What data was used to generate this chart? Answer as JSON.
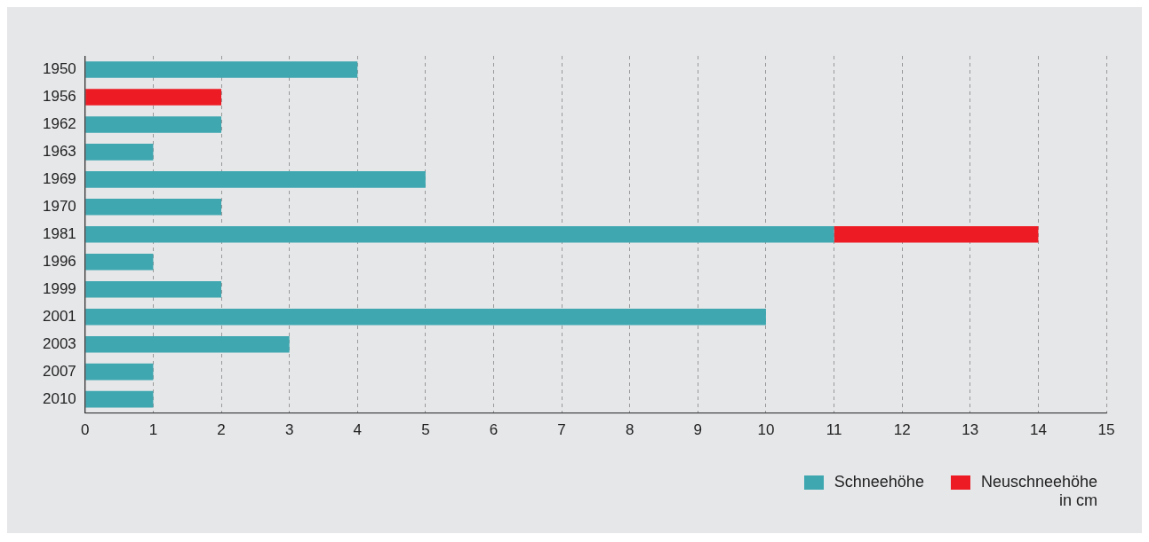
{
  "chart_data": {
    "type": "bar",
    "orientation": "horizontal",
    "stacked": true,
    "categories": [
      "1950",
      "1956",
      "1962",
      "1963",
      "1969",
      "1970",
      "1981",
      "1996",
      "1999",
      "2001",
      "2003",
      "2007",
      "2010"
    ],
    "series": [
      {
        "name": "Schneehöhe",
        "color": "#3fa7b0",
        "values": [
          4,
          0,
          2,
          1,
          5,
          2,
          11,
          1,
          2,
          10,
          3,
          1,
          1
        ]
      },
      {
        "name": "Neuschneehöhe",
        "color": "#ed1c24",
        "values": [
          0,
          2,
          0,
          0,
          0,
          0,
          3,
          0,
          0,
          0,
          0,
          0,
          0
        ]
      }
    ],
    "xlim": [
      0,
      15
    ],
    "xticks": [
      0,
      1,
      2,
      3,
      4,
      5,
      6,
      7,
      8,
      9,
      10,
      11,
      12,
      13,
      14,
      15
    ],
    "grid": "x",
    "legend": "bottom right",
    "annotations": [
      "in cm"
    ]
  }
}
